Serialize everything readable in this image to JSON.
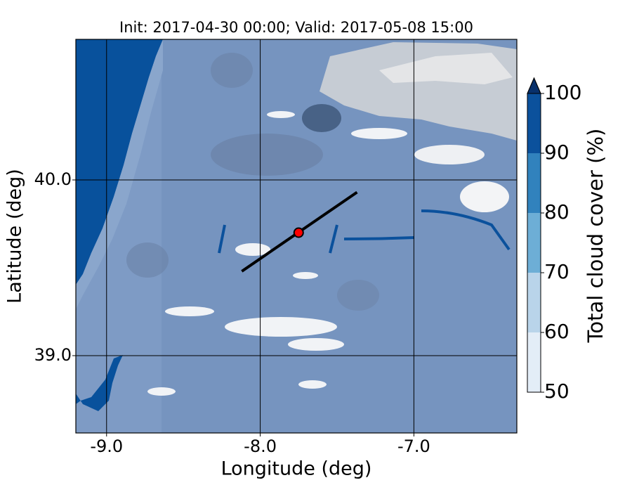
{
  "chart_data": {
    "type": "map",
    "title": "Init: 2017-04-30 00:00; Valid: 2017-05-08 15:00",
    "x_label": "Longitude (deg)",
    "y_label": "Latitude (deg)",
    "xlim": [
      -9.2,
      -6.33
    ],
    "ylim": [
      38.56,
      40.8
    ],
    "xticks": [
      {
        "value": -9,
        "label": "-9.0"
      },
      {
        "value": -8,
        "label": "-8.0"
      },
      {
        "value": -7,
        "label": "-7.0"
      }
    ],
    "yticks": [
      {
        "value": 39,
        "label": "39.0"
      },
      {
        "value": 40,
        "label": "40.0"
      }
    ],
    "grid": true,
    "transect": {
      "lon": [
        -8.12,
        -7.37
      ],
      "lat": [
        39.48,
        39.93
      ],
      "color": "#000000"
    },
    "marker": {
      "lon": -7.75,
      "lat": 39.7,
      "color": "#ff0000"
    },
    "colorbar": {
      "label": "Total cloud cover (%)",
      "ticks": [
        50,
        60,
        70,
        80,
        90,
        100
      ],
      "colors": [
        "#e3edf7",
        "#b9d4ea",
        "#6daed6",
        "#3182bd",
        "#0b519c"
      ],
      "extend_color": "#08306b"
    }
  }
}
